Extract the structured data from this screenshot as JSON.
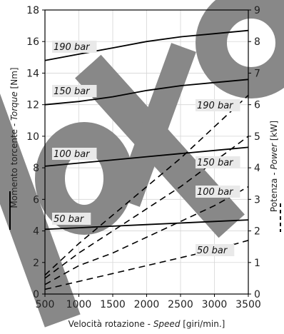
{
  "chart_data": {
    "type": "line",
    "xlabel": {
      "prefix": "Velocità rotazione - ",
      "italic": "Speed",
      "suffix": " [giri/min.]"
    },
    "ylabel_left": {
      "prefix": "Momento torcente - ",
      "italic": "Torque",
      "suffix": " [Nm]"
    },
    "ylabel_right": {
      "prefix": "Potenza - ",
      "italic": "Power",
      "suffix": " [kW]"
    },
    "x_ticks": [
      "500",
      "1000",
      "1500",
      "2000",
      "2500",
      "3000",
      "3500"
    ],
    "y_left_ticks": [
      "0",
      "2",
      "4",
      "6",
      "8",
      "10",
      "12",
      "14",
      "16",
      "18"
    ],
    "y_right_ticks": [
      "0",
      "1",
      "2",
      "3",
      "4",
      "5",
      "6",
      "7",
      "8",
      "9"
    ],
    "xlim": [
      500,
      3500
    ],
    "ylim_left": [
      0,
      18
    ],
    "ylim_right": [
      0,
      9
    ],
    "grid": true,
    "watermark_text": "Roto",
    "watermark_color": "#888888",
    "torque_series": [
      {
        "name": "190 bar",
        "x": [
          500,
          1000,
          1500,
          2000,
          2500,
          3000,
          3500
        ],
        "y": [
          14.8,
          15.2,
          15.6,
          16.0,
          16.3,
          16.5,
          16.7
        ]
      },
      {
        "name": "150 bar",
        "x": [
          500,
          1000,
          1500,
          2000,
          2500,
          3000,
          3500
        ],
        "y": [
          12.0,
          12.2,
          12.5,
          12.9,
          13.2,
          13.4,
          13.6
        ]
      },
      {
        "name": "100 bar",
        "x": [
          500,
          1000,
          1500,
          2000,
          2500,
          3000,
          3500
        ],
        "y": [
          8.1,
          8.3,
          8.5,
          8.7,
          8.9,
          9.1,
          9.3
        ]
      },
      {
        "name": "50 bar",
        "x": [
          500,
          1000,
          1500,
          2000,
          2500,
          3000,
          3500
        ],
        "y": [
          4.1,
          4.2,
          4.3,
          4.4,
          4.5,
          4.6,
          4.7
        ]
      }
    ],
    "power_series": [
      {
        "name": "190 bar",
        "x": [
          500,
          1000,
          1500,
          2000,
          2500,
          3000,
          3500
        ],
        "y": [
          0.6,
          1.6,
          2.5,
          3.4,
          4.3,
          5.3,
          6.3
        ]
      },
      {
        "name": "150 bar",
        "x": [
          500,
          1000,
          1500,
          2000,
          2500,
          3000,
          3500
        ],
        "y": [
          0.5,
          1.3,
          2.0,
          2.7,
          3.4,
          4.2,
          5.0
        ]
      },
      {
        "name": "100 bar",
        "x": [
          500,
          1000,
          1500,
          2000,
          2500,
          3000,
          3500
        ],
        "y": [
          0.3,
          0.9,
          1.3,
          1.8,
          2.3,
          2.8,
          3.4
        ]
      },
      {
        "name": "50 bar",
        "x": [
          500,
          1000,
          1500,
          2000,
          2500,
          3000,
          3500
        ],
        "y": [
          0.15,
          0.4,
          0.65,
          0.9,
          1.15,
          1.4,
          1.7
        ]
      }
    ]
  }
}
